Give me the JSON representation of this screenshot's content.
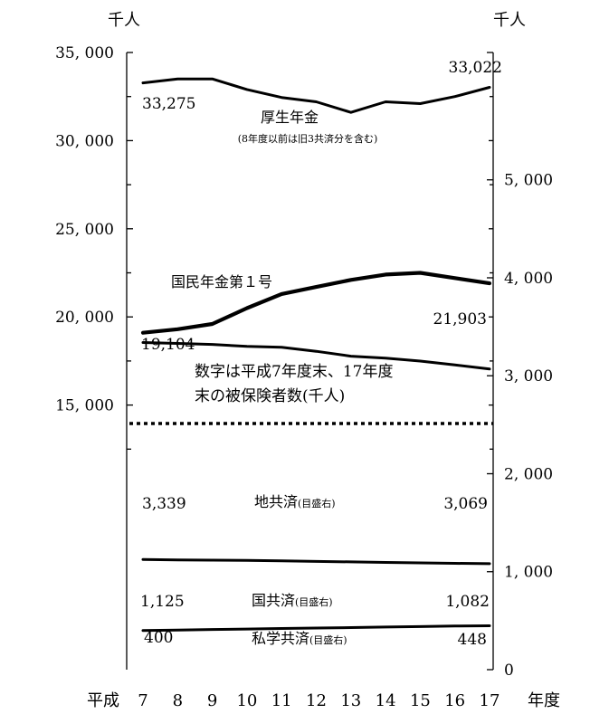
{
  "units": {
    "left": "千人",
    "right": "千人"
  },
  "x_prefix": "平成",
  "x_suffix": "年度",
  "note_lines": [
    "数字は平成7年度末、17年度",
    "末の被保険者数(千人)"
  ],
  "chart_data": {
    "type": "line",
    "categories": [
      "7",
      "8",
      "9",
      "10",
      "11",
      "12",
      "13",
      "14",
      "15",
      "16",
      "17"
    ],
    "axes": {
      "left": {
        "label": "千人",
        "ticks": [
          "15, 000",
          "20, 000",
          "25, 000",
          "30, 000",
          "35, 000"
        ],
        "tick_values": [
          15000,
          20000,
          25000,
          30000,
          35000
        ],
        "range": [
          10000,
          35000
        ]
      },
      "right": {
        "label": "千人",
        "ticks": [
          "0",
          "1, 000",
          "2, 000",
          "3, 000",
          "4, 000",
          "5, 000"
        ],
        "tick_values": [
          0,
          1000,
          2000,
          3000,
          4000,
          5000
        ],
        "range": [
          0,
          6300
        ]
      }
    },
    "series": [
      {
        "name": "厚生年金",
        "sub_name": "(8年度以前は旧3共済分を含む)",
        "axis": "left",
        "stroke_weight": "medium",
        "values": [
          33275,
          33500,
          33500,
          32900,
          32450,
          32200,
          31600,
          32200,
          32100,
          32500,
          33022
        ],
        "start_label": "33,275",
        "end_label": "33,022"
      },
      {
        "name": "国民年金第１号",
        "axis": "left",
        "stroke_weight": "heavy",
        "values": [
          19104,
          19300,
          19600,
          20500,
          21300,
          21700,
          22100,
          22400,
          22500,
          22200,
          21903
        ],
        "start_label": "19,104",
        "end_label": "21,903"
      },
      {
        "name": "地共済",
        "qualifier": "(目盛右)",
        "axis": "right",
        "stroke_weight": "medium",
        "values": [
          3339,
          3330,
          3320,
          3300,
          3290,
          3250,
          3200,
          3180,
          3150,
          3110,
          3069
        ],
        "start_label": "3,339",
        "end_label": "3,069"
      },
      {
        "name": "国共済",
        "qualifier": "(目盛右)",
        "axis": "right",
        "stroke_weight": "medium",
        "values": [
          1125,
          1120,
          1118,
          1115,
          1110,
          1105,
          1100,
          1095,
          1090,
          1085,
          1082
        ],
        "start_label": "1,125",
        "end_label": "1,082"
      },
      {
        "name": "私学共済",
        "qualifier": "(目盛右)",
        "axis": "right",
        "stroke_weight": "medium",
        "values": [
          400,
          405,
          410,
          415,
          420,
          425,
          430,
          435,
          440,
          445,
          448
        ],
        "start_label": "400",
        "end_label": "448"
      }
    ]
  }
}
